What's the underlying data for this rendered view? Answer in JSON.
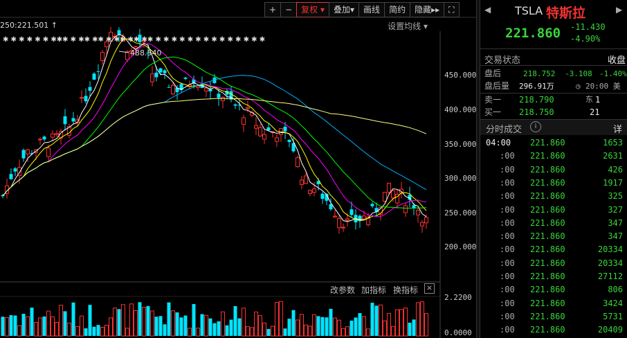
{
  "toolbar": {
    "plus": "+",
    "minus": "−",
    "fuquan": "复权",
    "fuquan_arrow": "▾",
    "diejia": "叠加",
    "diejia_arrow": "▾",
    "huaxian": "画线",
    "jianyue": "简约",
    "yincang": "隐藏",
    "more": "▸▸"
  },
  "chart": {
    "ma_param": "250:221.501",
    "set_ma": "设置均线",
    "max_label": "488.540",
    "y_ticks": [
      "450.000",
      "400.000",
      "350.000",
      "300.000",
      "250.000",
      "200.000"
    ],
    "vol_ticks": [
      "2.2200",
      "0.0000"
    ],
    "vol_buttons": [
      "改参数",
      "加指标",
      "换指标"
    ],
    "close_x": "×"
  },
  "chart_data": {
    "type": "candlestick",
    "symbol": "TSLA",
    "y_range": [
      200,
      490
    ],
    "annotated_high": 488.54,
    "ma_250_value": 221.501,
    "colors": {
      "up": "#ff3030",
      "down": "#00e5ff",
      "ma5": "#ffffff",
      "ma10": "#ffff00",
      "ma20": "#ff00ff",
      "ma60": "#00ff00",
      "ma120": "#00b0ff",
      "ma250": "#ffff80"
    }
  },
  "quote": {
    "ticker": "TSLA",
    "name": "特斯拉",
    "price": "221.860",
    "change": "-11.430",
    "change_pct": "-4.90%"
  },
  "status": {
    "label": "交易状态",
    "value": "收盘",
    "after_label": "盘后",
    "after_price": "218.752",
    "after_change": "-3.108",
    "after_pct": "-1.40%",
    "after_vol_label": "盘后量",
    "after_vol": "296.91万",
    "after_time": "20:00 美东"
  },
  "orderbook": [
    {
      "label": "卖一",
      "price": "218.790",
      "qty": "1"
    },
    {
      "label": "买一",
      "price": "218.750",
      "qty": "21"
    }
  ],
  "ticks": {
    "title": "分时成交",
    "detail": "详",
    "rows": [
      {
        "time": "04:00",
        "price": "221.860",
        "vol": "1653"
      },
      {
        "time": ":00",
        "price": "221.860",
        "vol": "2631"
      },
      {
        "time": ":00",
        "price": "221.860",
        "vol": "426"
      },
      {
        "time": ":00",
        "price": "221.860",
        "vol": "1917"
      },
      {
        "time": ":00",
        "price": "221.860",
        "vol": "325"
      },
      {
        "time": ":00",
        "price": "221.860",
        "vol": "327"
      },
      {
        "time": ":00",
        "price": "221.860",
        "vol": "347"
      },
      {
        "time": ":00",
        "price": "221.860",
        "vol": "347"
      },
      {
        "time": ":00",
        "price": "221.860",
        "vol": "20334"
      },
      {
        "time": ":00",
        "price": "221.860",
        "vol": "20334"
      },
      {
        "time": ":00",
        "price": "221.860",
        "vol": "27112"
      },
      {
        "time": ":00",
        "price": "221.860",
        "vol": "806"
      },
      {
        "time": ":00",
        "price": "221.860",
        "vol": "3424"
      },
      {
        "time": ":00",
        "price": "221.860",
        "vol": "5731"
      },
      {
        "time": ":00",
        "price": "221.860",
        "vol": "20409"
      }
    ]
  }
}
